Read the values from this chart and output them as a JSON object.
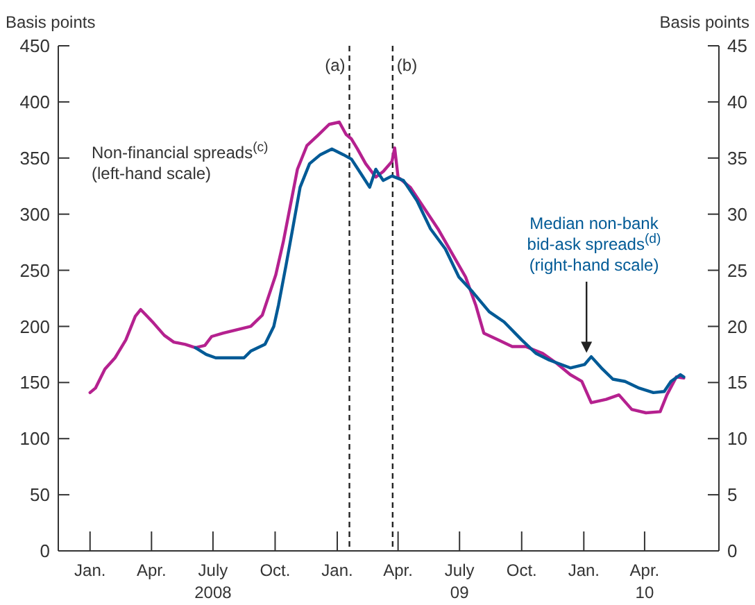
{
  "chart_data": {
    "type": "line",
    "ylabel": "Basis points",
    "y2label": "Basis points",
    "xlim": [
      "2007-11-15",
      "2010-07-20"
    ],
    "xticks": [
      {
        "value": "2008-01-01",
        "label": "Jan."
      },
      {
        "value": "2008-04-01",
        "label": "Apr."
      },
      {
        "value": "2008-07-01",
        "label": "July\n2008"
      },
      {
        "value": "2008-10-01",
        "label": "Oct."
      },
      {
        "value": "2009-01-01",
        "label": "Jan."
      },
      {
        "value": "2009-04-01",
        "label": "Apr."
      },
      {
        "value": "2009-07-01",
        "label": "July\n09"
      },
      {
        "value": "2009-10-01",
        "label": "Oct."
      },
      {
        "value": "2010-01-01",
        "label": "Jan."
      },
      {
        "value": "2010-04-01",
        "label": "Apr.\n10"
      }
    ],
    "ylim": [
      0,
      450
    ],
    "yticks": [
      0,
      50,
      100,
      150,
      200,
      250,
      300,
      350,
      400,
      450
    ],
    "y2lim": [
      0,
      45
    ],
    "y2ticks": [
      0,
      5,
      10,
      15,
      20,
      25,
      30,
      35,
      40,
      45
    ],
    "ref_lines": [
      {
        "axis": "x",
        "value": "2009-01-19",
        "label": "(a)",
        "line_style": "dashed"
      },
      {
        "axis": "x",
        "value": "2009-03-24",
        "label": "(b)",
        "line_style": "dashed"
      }
    ],
    "series": [
      {
        "name": "Non-financial spreads$^{(c)}$ (left-hand scale)",
        "color": "#b5218f",
        "x": [
          "2008-01-01",
          "2008-01-09",
          "2008-01-23",
          "2008-02-07",
          "2008-02-23",
          "2008-03-08",
          "2008-03-16",
          "2008-03-24",
          "2008-04-04",
          "2008-04-20",
          "2008-05-04",
          "2008-05-21",
          "2008-06-05",
          "2008-06-19",
          "2008-06-29",
          "2008-07-16",
          "2008-08-05",
          "2008-08-26",
          "2008-09-12",
          "2008-09-22",
          "2008-10-02",
          "2008-10-13",
          "2008-10-23",
          "2008-11-03",
          "2008-11-17",
          "2008-12-03",
          "2008-12-20",
          "2009-01-04",
          "2009-01-14",
          "2009-01-22",
          "2009-01-31",
          "2009-02-12",
          "2009-02-27",
          "2009-03-10",
          "2009-03-23",
          "2009-03-27",
          "2009-04-01",
          "2009-04-19",
          "2009-05-09",
          "2009-05-30",
          "2009-06-20",
          "2009-07-10",
          "2009-07-25",
          "2009-08-06",
          "2009-08-27",
          "2009-09-17",
          "2009-10-07",
          "2009-11-01",
          "2009-11-22",
          "2009-12-12",
          "2009-12-29",
          "2010-01-12",
          "2010-02-03",
          "2010-02-22",
          "2010-03-13",
          "2010-04-03",
          "2010-04-24",
          "2010-05-04",
          "2010-05-18",
          "2010-05-29"
        ],
        "values": [
          141,
          145,
          162,
          172,
          188,
          209,
          215,
          210,
          203,
          192,
          186,
          184,
          181,
          183,
          191,
          194,
          197,
          200,
          210,
          228,
          246,
          275,
          306,
          340,
          361,
          370,
          380,
          382,
          371,
          367,
          358,
          345,
          333,
          338,
          347,
          359,
          333,
          324,
          306,
          287,
          265,
          244,
          219,
          194,
          188,
          182,
          182,
          176,
          167,
          157,
          151,
          132,
          135,
          139,
          126,
          123,
          124,
          139,
          155,
          154
        ]
      },
      {
        "name": "Median non-bank bid-ask spreads$^{(d)}$ (right-hand scale)",
        "color": "#005a96",
        "axis": "y2",
        "x": [
          "2008-06-05",
          "2008-06-21",
          "2008-07-05",
          "2008-07-26",
          "2008-08-16",
          "2008-08-26",
          "2008-09-16",
          "2008-09-29",
          "2008-10-06",
          "2008-10-17",
          "2008-10-27",
          "2008-11-07",
          "2008-11-21",
          "2008-12-07",
          "2008-12-24",
          "2009-01-10",
          "2009-01-22",
          "2009-02-04",
          "2009-02-18",
          "2009-02-27",
          "2009-03-10",
          "2009-03-23",
          "2009-04-09",
          "2009-04-29",
          "2009-05-19",
          "2009-06-10",
          "2009-06-30",
          "2009-07-20",
          "2009-08-14",
          "2009-09-05",
          "2009-10-01",
          "2009-10-22",
          "2009-11-11",
          "2009-12-12",
          "2010-01-02",
          "2010-01-12",
          "2010-01-27",
          "2010-02-13",
          "2010-03-03",
          "2010-03-24",
          "2010-04-14",
          "2010-04-30",
          "2010-05-10",
          "2010-05-24",
          "2010-05-29"
        ],
        "values": [
          18.1,
          17.5,
          17.2,
          17.2,
          17.2,
          17.8,
          18.4,
          20.0,
          21.9,
          25.4,
          28.7,
          32.4,
          34.5,
          35.3,
          35.8,
          35.3,
          34.9,
          33.7,
          32.4,
          34.0,
          33.0,
          33.4,
          33.0,
          31.2,
          28.7,
          26.9,
          24.4,
          23.1,
          21.3,
          20.4,
          18.8,
          17.6,
          17.0,
          16.3,
          16.6,
          17.3,
          16.3,
          15.3,
          15.1,
          14.5,
          14.1,
          14.2,
          15.1,
          15.7,
          15.5
        ]
      }
    ]
  }
}
